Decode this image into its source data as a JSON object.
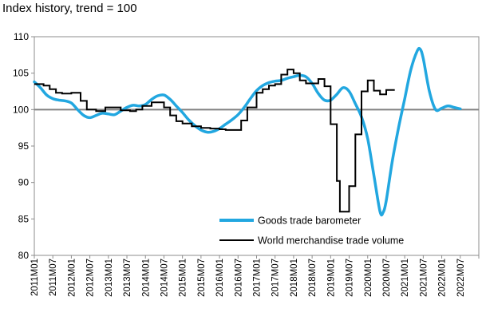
{
  "chart_data": {
    "type": "line",
    "title": "Index history, trend = 100",
    "ylim": [
      80,
      110
    ],
    "yticks": [
      80,
      85,
      90,
      95,
      100,
      105,
      110
    ],
    "x_categories": [
      "2011M01",
      "2011M07",
      "2012M01",
      "2012M07",
      "2013M01",
      "2013M07",
      "2014M01",
      "2014M07",
      "2015M01",
      "2015M07",
      "2016M01",
      "2016M07",
      "2017M01",
      "2017M07",
      "2018M01",
      "2018M07",
      "2019M01",
      "2019M07",
      "2020M01",
      "2020M07",
      "2021M01",
      "2021M07",
      "2022M01",
      "2022M07"
    ],
    "reference_line": 100,
    "grid": false,
    "legend_position": "bottom-right",
    "colors": {
      "barometer": "#22a7e0",
      "volume": "#000000",
      "reference": "#808080"
    },
    "series": [
      {
        "name": "Goods trade barometer",
        "points": [
          [
            "2011-01",
            103.8
          ],
          [
            "2011-03",
            103.0
          ],
          [
            "2011-05",
            102.0
          ],
          [
            "2011-07",
            101.5
          ],
          [
            "2011-09",
            101.3
          ],
          [
            "2011-11",
            101.2
          ],
          [
            "2012-01",
            100.9
          ],
          [
            "2012-03",
            100.0
          ],
          [
            "2012-05",
            99.2
          ],
          [
            "2012-07",
            98.9
          ],
          [
            "2012-09",
            99.2
          ],
          [
            "2012-11",
            99.5
          ],
          [
            "2013-01",
            99.4
          ],
          [
            "2013-03",
            99.3
          ],
          [
            "2013-05",
            99.8
          ],
          [
            "2013-07",
            100.3
          ],
          [
            "2013-09",
            100.6
          ],
          [
            "2013-11",
            100.5
          ],
          [
            "2014-01",
            100.7
          ],
          [
            "2014-03",
            101.4
          ],
          [
            "2014-05",
            101.9
          ],
          [
            "2014-07",
            102.0
          ],
          [
            "2014-09",
            101.4
          ],
          [
            "2014-11",
            100.5
          ],
          [
            "2015-01",
            99.6
          ],
          [
            "2015-03",
            98.6
          ],
          [
            "2015-05",
            97.8
          ],
          [
            "2015-07",
            97.2
          ],
          [
            "2015-09",
            96.9
          ],
          [
            "2015-11",
            97.0
          ],
          [
            "2016-01",
            97.4
          ],
          [
            "2016-03",
            98.0
          ],
          [
            "2016-05",
            98.6
          ],
          [
            "2016-07",
            99.3
          ],
          [
            "2016-09",
            100.3
          ],
          [
            "2016-11",
            101.5
          ],
          [
            "2017-01",
            102.6
          ],
          [
            "2017-03",
            103.3
          ],
          [
            "2017-05",
            103.7
          ],
          [
            "2017-07",
            103.9
          ],
          [
            "2017-09",
            104.0
          ],
          [
            "2017-11",
            104.3
          ],
          [
            "2018-01",
            104.5
          ],
          [
            "2018-03",
            104.7
          ],
          [
            "2018-05",
            104.5
          ],
          [
            "2018-07",
            103.6
          ],
          [
            "2018-09",
            102.2
          ],
          [
            "2018-11",
            101.3
          ],
          [
            "2019-01",
            101.3
          ],
          [
            "2019-03",
            102.1
          ],
          [
            "2019-05",
            103.0
          ],
          [
            "2019-07",
            102.5
          ],
          [
            "2019-09",
            100.8
          ],
          [
            "2019-11",
            99.0
          ],
          [
            "2020-01",
            96.0
          ],
          [
            "2020-03",
            91.0
          ],
          [
            "2020-05",
            86.0
          ],
          [
            "2020-06",
            85.9
          ],
          [
            "2020-07",
            87.5
          ],
          [
            "2020-09",
            93.0
          ],
          [
            "2020-11",
            97.5
          ],
          [
            "2021-01",
            101.5
          ],
          [
            "2021-03",
            105.5
          ],
          [
            "2021-05",
            108.0
          ],
          [
            "2021-06",
            108.3
          ],
          [
            "2021-07",
            107.0
          ],
          [
            "2021-09",
            102.5
          ],
          [
            "2021-11",
            100.0
          ],
          [
            "2022-01",
            100.2
          ],
          [
            "2022-03",
            100.5
          ],
          [
            "2022-05",
            100.3
          ],
          [
            "2022-07",
            100.1
          ]
        ]
      },
      {
        "name": "World merchandise trade volume",
        "points": [
          [
            "2011-01",
            103.5
          ],
          [
            "2011-04",
            103.3
          ],
          [
            "2011-06",
            102.8
          ],
          [
            "2011-08",
            102.3
          ],
          [
            "2011-10",
            102.2
          ],
          [
            "2012-01",
            102.3
          ],
          [
            "2012-04",
            101.2
          ],
          [
            "2012-06",
            100.0
          ],
          [
            "2012-09",
            99.8
          ],
          [
            "2012-12",
            100.3
          ],
          [
            "2013-03",
            100.3
          ],
          [
            "2013-05",
            99.9
          ],
          [
            "2013-08",
            99.8
          ],
          [
            "2013-10",
            100.0
          ],
          [
            "2013-12",
            100.5
          ],
          [
            "2014-03",
            101.0
          ],
          [
            "2014-05",
            101.0
          ],
          [
            "2014-07",
            100.3
          ],
          [
            "2014-09",
            99.2
          ],
          [
            "2014-11",
            98.4
          ],
          [
            "2015-01",
            98.1
          ],
          [
            "2015-04",
            97.7
          ],
          [
            "2015-07",
            97.5
          ],
          [
            "2015-10",
            97.4
          ],
          [
            "2016-01",
            97.3
          ],
          [
            "2016-03",
            97.2
          ],
          [
            "2016-06",
            97.2
          ],
          [
            "2016-08",
            98.5
          ],
          [
            "2016-10",
            100.3
          ],
          [
            "2017-01",
            102.3
          ],
          [
            "2017-03",
            102.8
          ],
          [
            "2017-05",
            103.3
          ],
          [
            "2017-07",
            103.5
          ],
          [
            "2017-09",
            104.8
          ],
          [
            "2017-11",
            105.5
          ],
          [
            "2018-01",
            105.0
          ],
          [
            "2018-03",
            104.0
          ],
          [
            "2018-05",
            103.6
          ],
          [
            "2018-07",
            103.6
          ],
          [
            "2018-09",
            104.2
          ],
          [
            "2018-11",
            103.2
          ],
          [
            "2019-01",
            98.0
          ],
          [
            "2019-03",
            90.2
          ],
          [
            "2019-04",
            86.0
          ],
          [
            "2019-05",
            86.0
          ],
          [
            "2019-07",
            89.5
          ],
          [
            "2019-09",
            96.6
          ],
          [
            "2019-11",
            102.5
          ],
          [
            "2020-01",
            104.0
          ],
          [
            "2020-03",
            102.6
          ],
          [
            "2020-05",
            102.1
          ],
          [
            "2020-07",
            102.7
          ],
          [
            "2020-09",
            102.7
          ]
        ]
      }
    ]
  }
}
